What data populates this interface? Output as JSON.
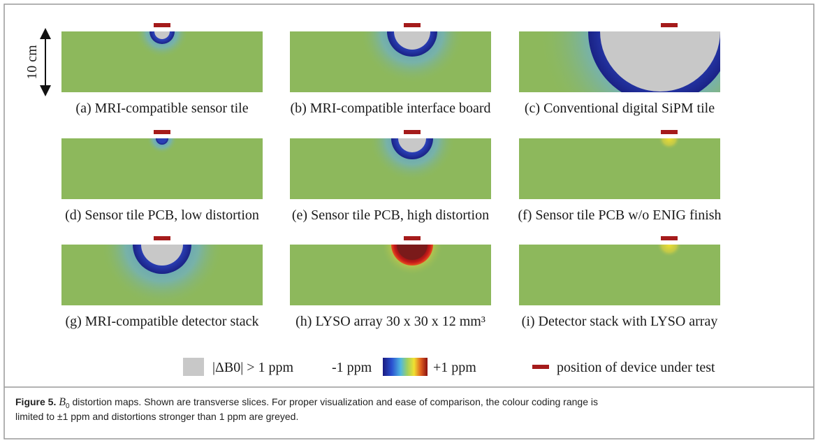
{
  "scale_label": "10 cm",
  "panels": [
    {
      "label": "(a) MRI-compatible sensor tile"
    },
    {
      "label": "(b) MRI-compatible interface board"
    },
    {
      "label": "(c) Conventional digital SiPM tile"
    },
    {
      "label": "(d) Sensor tile PCB, low distortion"
    },
    {
      "label": "(e) Sensor tile PCB, high distortion"
    },
    {
      "label": "(f) Sensor tile PCB w/o ENIG finish"
    },
    {
      "label": "(g) MRI-compatible detector stack"
    },
    {
      "label": "(h) LYSO array 30 x 30 x 12 mm³"
    },
    {
      "label": "(i) Detector stack with LYSO array"
    }
  ],
  "legend": {
    "grey_label": "|ΔB0| > 1 ppm",
    "colorbar_min": "-1 ppm",
    "colorbar_max": "+1 ppm",
    "marker_label": "position of device under test"
  },
  "caption": {
    "label": "Figure 5.",
    "symbol": "B",
    "subscript": "0",
    "line1": " distortion maps. Shown are transverse slices. For proper visualization and ease of comparison, the colour coding range is",
    "line2": "limited to ±1 ppm and distortions stronger than 1 ppm are greyed."
  }
}
